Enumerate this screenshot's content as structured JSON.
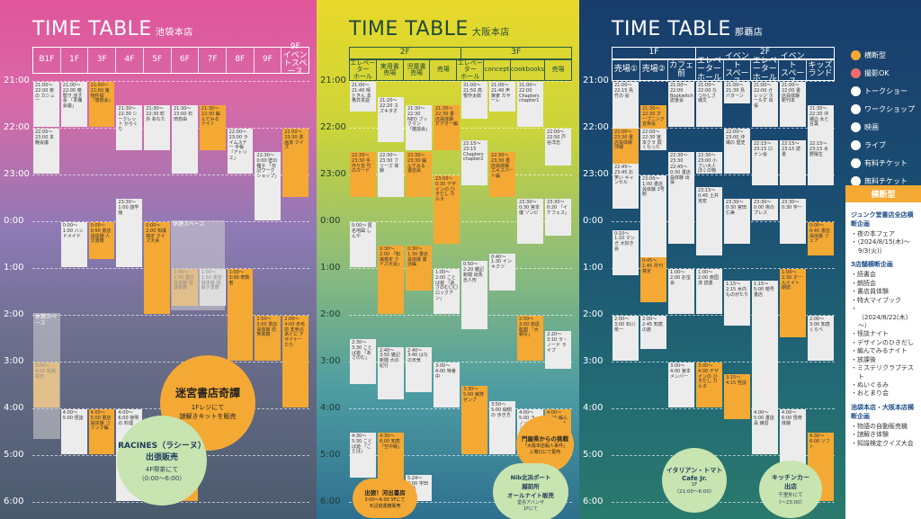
{
  "time_labels": [
    "21:00",
    "22:00",
    "23:00",
    "0:00",
    "1:00",
    "2:00",
    "3:00",
    "4:00",
    "5:00",
    "6:00"
  ],
  "ikebukuro": {
    "title": "TIME TABLE",
    "subtitle": "池袋本店",
    "floors": [
      "B1F",
      "1F",
      "3F",
      "4F",
      "5F",
      "6F",
      "7F",
      "8F",
      "9F",
      "9F\nイベントスペース"
    ],
    "events": [
      {
        "t": "21:00～22:00 夜の カシュー",
        "c": "w"
      },
      {
        "t": "21:00～22:00 暗闇ヲ 話す会 「本棚会議」",
        "c": "w"
      },
      {
        "t": "21:00～22:00 鬼物件探 「感想会」",
        "c": "o"
      },
      {
        "t": "21:30～22:30 シークレット からくり",
        "c": "w"
      },
      {
        "t": "21:30～22:30 町外 あなた",
        "c": "w"
      },
      {
        "t": "21:30～23:00 石田自由",
        "c": "w"
      },
      {
        "t": "21:30～22:30 編んでみる ナイト",
        "c": "o"
      },
      {
        "t": "22:00～23:00 ライムステー 手帳 「アトリエ」",
        "c": "w"
      },
      {
        "t": "22:30～0:00 壁の種子 「日記ワーク ショップ」",
        "c": "w"
      },
      {
        "t": "22:00～23:30 漫画家 クイズ",
        "c": "o"
      },
      {
        "t": "22:00～23:00 本棚会議",
        "c": "w"
      },
      {
        "t": "0:00～1:00 ハンドメイド",
        "c": "w"
      },
      {
        "t": "0:00～0:50 書店員体験 人文書籍",
        "c": "o"
      },
      {
        "t": "23:30～1:00 謎学館",
        "c": "w"
      },
      {
        "t": "0:00～2:00 知識検定 クイズ大会",
        "c": "o"
      },
      {
        "t": "1:00～1:50 書店員体験 謎謎書籍",
        "c": "o"
      },
      {
        "t": "1:00～1:50 書店員体験 謎解き書籍",
        "c": "w"
      },
      {
        "t": "1:00～3:00 奇数者",
        "c": "o"
      },
      {
        "t": "2:00～3:00 書店員体験 恐怖書籍",
        "c": "o"
      },
      {
        "t": "2:00～4:00 赤毛的 変死のあとに デザイナーたち",
        "c": "o"
      },
      {
        "t": "3:00～4:00 知識検定",
        "c": "o"
      },
      {
        "t": "4:00～5:00 怪談",
        "c": "w"
      },
      {
        "t": "4:00～5:00 書店員体験 コミック編",
        "c": "o"
      },
      {
        "t": "4:00～6:00 夜明の 料理",
        "c": "w"
      },
      {
        "t": "5:00～6:00 体験 推理",
        "c": "w"
      },
      {
        "t": "5:00～6:00 体験 読書",
        "c": "o"
      }
    ],
    "break_label": "休憩スペース",
    "circle1": {
      "title": "迷宮書店奇譚",
      "body": "1Fレジにて\n謎解きキットを販売"
    },
    "circle2": {
      "title": "RACINES（ラシーヌ）\n出張販売",
      "body": "4F喫茶にて\n（0:00～6:00）"
    }
  },
  "osaka": {
    "title": "TIME TABLE",
    "subtitle": "大阪本店",
    "floor2": "2F",
    "floor3": "3F",
    "cols": [
      "エレベーター\nホール",
      "実用書\n売場",
      "児童書\n売場",
      "売場",
      "エレベーター\nホール",
      "concept",
      "cookbooks",
      "売場"
    ],
    "events": [
      {
        "t": "21:00～21:40 晴ときん 本格日本語",
        "c": "w"
      },
      {
        "t": "21:20～22:20 スズキタオ",
        "c": "w"
      },
      {
        "t": "21:30～22:30 NEO ブックマン 「雑談会」",
        "c": "w"
      },
      {
        "t": "21:30～22:30 書店員体験 ビデオー編",
        "c": "o"
      },
      {
        "t": "21:00～21:50 高根作太郎",
        "c": "w"
      },
      {
        "t": "21:00～21:40 声楽家 カサーレ",
        "c": "w"
      },
      {
        "t": "21:00～22:00 Chapters chapter1",
        "c": "w"
      },
      {
        "t": "22:00～22:50 戸谷洋志",
        "c": "w"
      },
      {
        "t": "22:30～23:30 手作り芸 竹のカード",
        "c": "o"
      },
      {
        "t": "22:30～23:30 フリーズ 体験",
        "c": "w"
      },
      {
        "t": "22:30～23:30 編んでみる 書店員",
        "c": "o"
      },
      {
        "t": "23:00～0:30 デザインの ひきだし カルタ",
        "c": "o"
      },
      {
        "t": "22:15～23:15 Chapters chapter2",
        "c": "w"
      },
      {
        "t": "22:30～23:30 書店員体験 エキスパート編",
        "c": "o"
      },
      {
        "t": "23:30～0:30 宮本優 ゾンビ",
        "c": "w"
      },
      {
        "t": "23:30～0:20 「イケフェス」",
        "c": "w"
      },
      {
        "t": "0:00～ 匿名地図 しんや",
        "c": "w"
      },
      {
        "t": "0:30～2:00 「知識検定 クイズ大会」",
        "c": "o"
      },
      {
        "t": "0:30～1:30 書店員体験 童話編",
        "c": "o"
      },
      {
        "t": "1:00～2:00 ことば遊 「あさのむ〇〇 ロックアン」",
        "c": "w"
      },
      {
        "t": "0:50～2:20 雑記新聞 出馬氏人形",
        "c": "w"
      },
      {
        "t": "0:40～1:30 インキクツ",
        "c": "w"
      },
      {
        "t": "2:00～3:00 高垣聡樹 「大朝写」",
        "c": "o"
      },
      {
        "t": "2:20～3:10 ラ・ノード ライブ",
        "c": "w"
      },
      {
        "t": "2:30～3:30 ことば遊 「あさのむ」",
        "c": "w"
      },
      {
        "t": "2:40～3:50 雑記新聞 大の紀行",
        "c": "w"
      },
      {
        "t": "2:40～3:40 はなの天気",
        "c": "w"
      },
      {
        "t": "3:00～4:00 特番中",
        "c": "w"
      },
      {
        "t": "3:30～5:00 実際 ゼンブ",
        "c": "o"
      },
      {
        "t": "3:50～5:00 緑側の 歩き方",
        "c": "w"
      },
      {
        "t": "4:00～5:00 ラ・ノード シュックラブ",
        "c": "w"
      },
      {
        "t": "4:00～5:00 編んでみる ナイト",
        "c": "o"
      },
      {
        "t": "4:30～5:30 ことば遊 「ことば」",
        "c": "w"
      },
      {
        "t": "4:30～6:00 知恵 「空中戦」",
        "c": "o"
      },
      {
        "t": "5:24～6:00 宇田直人",
        "c": "w"
      }
    ],
    "circle1": {
      "title": "門屋県からの挑戦",
      "body": "「大阪本店殺人事件」\n入場口にて配布"
    },
    "circle2": {
      "title": "Nib北浜ポート\n越前所\nオールナイト販売",
      "body": "堂島アバンザ\n1Fにて"
    },
    "circle3": {
      "title": "出張！河出書房",
      "body": "3:00～6:00 5Fにて\nＢ記憶書籍販売"
    }
  },
  "naha": {
    "title": "TIME TABLE",
    "subtitle": "那覇店",
    "floor1": "1F",
    "floor2": "2F",
    "cols": [
      "売場①",
      "売場②",
      "カフェ前",
      "エレベーター\nホール",
      "イベント\nスペース",
      "エレベーター\nホール",
      "イベント\nスペース",
      "キッズ\nランド"
    ],
    "events": [
      {
        "t": "21:00～22:15 鳥竹の 会",
        "c": "w"
      },
      {
        "t": "21:30～22:30 オープニング 音楽会",
        "c": "o"
      },
      {
        "t": "21:00～22:00 Bookwitch 読書会",
        "c": "w"
      },
      {
        "t": "21:00～22:00 なつかしさ 縄文",
        "c": "w"
      },
      {
        "t": "21:00～21:30 島パターン",
        "c": "w"
      },
      {
        "t": "21:00～22:00 ガレッジ ホールず 出張",
        "c": "w"
      },
      {
        "t": "21:00～22:00 書店員体験 新刊本",
        "c": "w"
      },
      {
        "t": "21:30～22:30 沖縄の 女と 言葉",
        "c": "w"
      },
      {
        "t": "22:00～23:30 書店員体験 沖縄",
        "c": "o"
      },
      {
        "t": "22:00～22:30 宮本クラ 弱くなった",
        "c": "w"
      },
      {
        "t": "22:30～23:30 「デザイン ジュニア」",
        "c": "w"
      },
      {
        "t": "22:30～23:00 小さい大人 ぼくの物",
        "c": "w"
      },
      {
        "t": "22:00～23:00 沖縄の 歴史",
        "c": "w"
      },
      {
        "t": "22:15～23:15 ロナン会",
        "c": "w"
      },
      {
        "t": "22:15～23:15 読書",
        "c": "w"
      },
      {
        "t": "22:15～23:15 水野陽生",
        "c": "w"
      },
      {
        "t": "22:45～23:45 お笑い キャンセル",
        "c": "w"
      },
      {
        "t": "23:00～1:00 書店員体験 2号館",
        "c": "w"
      },
      {
        "t": "22:45～0:30 書店員体験 出張",
        "c": "w"
      },
      {
        "t": "23:15～0:45 土井克宏",
        "c": "w"
      },
      {
        "t": "23:30～0:30 宮田仁美",
        "c": "w"
      },
      {
        "t": "23:30～0:00 夜のプレス",
        "c": "w"
      },
      {
        "t": "23:30～0:30 宇一",
        "c": "w"
      },
      {
        "t": "0:00～0:45 書店員体験 フェア",
        "c": "o"
      },
      {
        "t": "0:10～1:10 マンガ 大好き会",
        "c": "w"
      },
      {
        "t": "0:45～1:45 月刊検定",
        "c": "o"
      },
      {
        "t": "1:00～2:00 お宝会",
        "c": "w"
      },
      {
        "t": "1:00～2:00 南国流 読書",
        "c": "w"
      },
      {
        "t": "1:15～2:15 木内ものがたり",
        "c": "w"
      },
      {
        "t": "1:15～5:00 暗号 書店",
        "c": "w"
      },
      {
        "t": "1:00～2:30 オールナイト 朗読",
        "c": "o"
      },
      {
        "t": "2:00～3:00 知恵くらべ",
        "c": "w"
      },
      {
        "t": "2:00～3:00 石川県一",
        "c": "w"
      },
      {
        "t": "2:00～2:45 知恵の旅",
        "c": "w"
      },
      {
        "t": "3:00～4:00 宮本 メンバー",
        "c": "w"
      },
      {
        "t": "3:00～4:00 デザインの ひきだし カルタ",
        "c": "o"
      },
      {
        "t": "3:15～4:15 怪談",
        "c": "o"
      },
      {
        "t": "4:00～5:00 書店員 練習",
        "c": "w"
      },
      {
        "t": "4:00～6:00 怪奇 体験",
        "c": "w"
      },
      {
        "t": "4:30～6:00 ソフト",
        "c": "o"
      }
    ],
    "circle1": {
      "title": "イタリアン・トマト\nCafe Jr.",
      "body": "1F\n（21:00～6:00）"
    },
    "circle2": {
      "title": "キッチンカー\n出店",
      "body": "千里外にて\n（～23:00）"
    }
  },
  "legend": [
    "横断型",
    "撮影OK",
    "トークショー",
    "ワークショップ",
    "映画",
    "ライブ",
    "有料チケット",
    "無料チケット"
  ],
  "info": {
    "header": "横断型",
    "sec1_title": "ジュンク堂書店全店横断企画",
    "sec1_items": [
      "夜の本フェア",
      "（2024/8/15(木)～9/3(火)）"
    ],
    "sec2_title": "3店舗横断企画",
    "sec2_items": [
      "読書会",
      "朗読会",
      "書店員体験",
      "特大マイブック",
      "（2024/8/22(木)～）",
      "怪談ナイト",
      "デザインのひきだし",
      "編んでみるナイト",
      "放課後",
      "ミステリクラブテスト",
      "ぬいぐるみ",
      "おとまり会"
    ],
    "sec3_title": "池袋本店・大阪本店横断企画",
    "sec3_items": [
      "物語の自動販売機",
      "謎解き体験",
      "知識検定クイズ大会"
    ]
  }
}
